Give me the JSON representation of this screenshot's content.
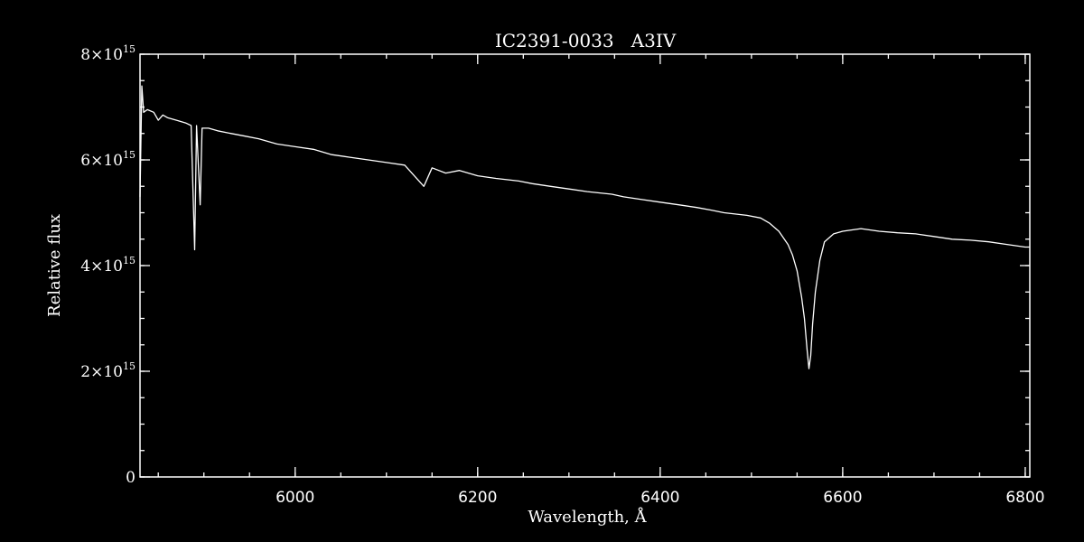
{
  "chart_data": {
    "type": "line",
    "title": "IC2391-0033   A3IV",
    "xlabel": "Wavelength, Å",
    "ylabel": "Relative flux",
    "xlim": [
      5830,
      6805
    ],
    "ylim": [
      0,
      8000000000000000.0
    ],
    "x_ticks": [
      6000,
      6200,
      6400,
      6600,
      6800
    ],
    "x_tick_labels": [
      "6000",
      "6200",
      "6400",
      "6600",
      "6800"
    ],
    "y_ticks": [
      {
        "value": 0,
        "label": "0"
      },
      {
        "value": 2000000000000000.0,
        "mant": "2",
        "exp": "15"
      },
      {
        "value": 4000000000000000.0,
        "mant": "4",
        "exp": "15"
      },
      {
        "value": 6000000000000000.0,
        "mant": "6",
        "exp": "15"
      },
      {
        "value": 8000000000000000.0,
        "mant": "8",
        "exp": "15"
      }
    ],
    "x_minor_step": 50,
    "y_minor_step": 500000000000000.0,
    "grid": false,
    "series": [
      {
        "color": "#ffffff",
        "x": [
          5830,
          5832,
          5834,
          5838,
          5845,
          5850,
          5855,
          5860,
          5870,
          5880,
          5886,
          5889.9,
          5892,
          5895.9,
          5898,
          5905,
          5915,
          5930,
          5945,
          5960,
          5980,
          6000,
          6020,
          6040,
          6060,
          6080,
          6100,
          6120,
          6141,
          6150,
          6165,
          6180,
          6200,
          6220,
          6245,
          6260,
          6280,
          6300,
          6320,
          6347,
          6360,
          6380,
          6400,
          6420,
          6440,
          6456,
          6470,
          6495,
          6510,
          6520,
          6530,
          6540,
          6545,
          6550,
          6555,
          6558,
          6561,
          6563,
          6565,
          6567,
          6570,
          6575,
          6580,
          6590,
          6600,
          6620,
          6640,
          6660,
          6680,
          6700,
          6720,
          6740,
          6760,
          6780,
          6800,
          6805
        ],
        "y": [
          5300000000000000.0,
          7400000000000000.0,
          6900000000000000.0,
          6950000000000000.0,
          6900000000000000.0,
          6750000000000000.0,
          6850000000000000.0,
          6800000000000000.0,
          6750000000000000.0,
          6700000000000000.0,
          6650000000000000.0,
          4300000000000000.0,
          6650000000000000.0,
          5150000000000000.0,
          6600000000000000.0,
          6600000000000000.0,
          6550000000000000.0,
          6500000000000000.0,
          6450000000000000.0,
          6400000000000000.0,
          6300000000000000.0,
          6250000000000000.0,
          6200000000000000.0,
          6100000000000000.0,
          6050000000000000.0,
          6000000000000000.0,
          5950000000000000.0,
          5900000000000000.0,
          5500000000000000.0,
          5850000000000000.0,
          5750000000000000.0,
          5800000000000000.0,
          5700000000000000.0,
          5650000000000000.0,
          5600000000000000.0,
          5550000000000000.0,
          5500000000000000.0,
          5450000000000000.0,
          5400000000000000.0,
          5350000000000000.0,
          5300000000000000.0,
          5250000000000000.0,
          5200000000000000.0,
          5150000000000000.0,
          5100000000000000.0,
          5050000000000000.0,
          5000000000000000.0,
          4950000000000000.0,
          4900000000000000.0,
          4800000000000000.0,
          4650000000000000.0,
          4400000000000000.0,
          4200000000000000.0,
          3900000000000000.0,
          3400000000000000.0,
          3000000000000000.0,
          2400000000000000.0,
          2050000000000000.0,
          2300000000000000.0,
          2900000000000000.0,
          3500000000000000.0,
          4100000000000000.0,
          4450000000000000.0,
          4600000000000000.0,
          4650000000000000.0,
          4700000000000000.0,
          4650000000000000.0,
          4620000000000000.0,
          4600000000000000.0,
          4550000000000000.0,
          4500000000000000.0,
          4480000000000000.0,
          4450000000000000.0,
          4400000000000000.0,
          4350000000000000.0,
          4350000000000000.0
        ]
      }
    ]
  }
}
